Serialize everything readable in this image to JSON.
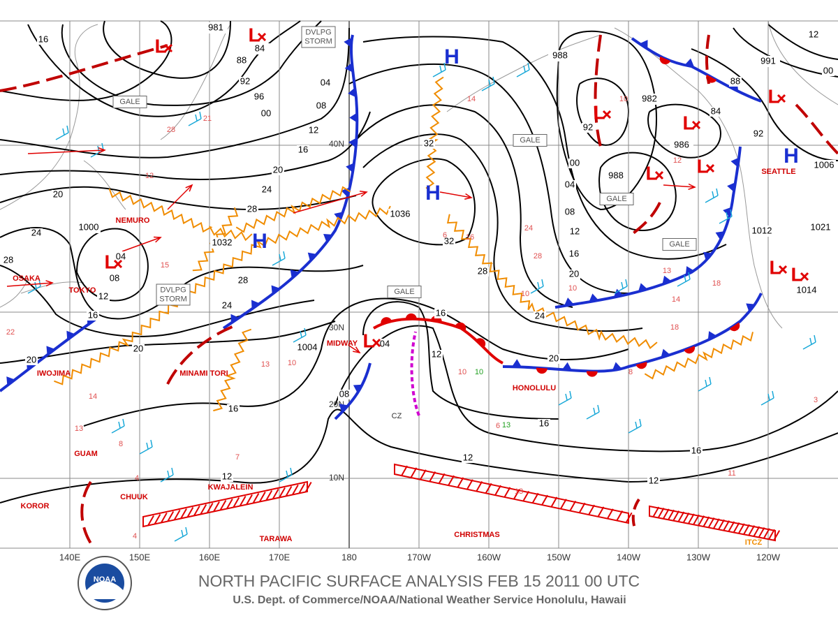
{
  "title": "NORTH PACIFIC SURFACE ANALYSIS FEB 15 2011 00 UTC",
  "subtitle": "U.S. Dept. of Commerce/NOAA/National Weather Service Honolulu, Hawaii",
  "logo_text": "NOAA",
  "longitudes": [
    "140E",
    "150E",
    "160E",
    "170E",
    "180",
    "170W",
    "160W",
    "150W",
    "140W",
    "130W",
    "120W"
  ],
  "latitudes": [
    "40N",
    "30N",
    "20N",
    "10N"
  ],
  "places": [
    "NEMURO",
    "OSAKA",
    "TOKYO",
    "IWOJIMA",
    "MINAMI TORI",
    "MIDWAY",
    "HONOLULU",
    "GUAM",
    "KWAJALEIN",
    "CHUUK",
    "KOROR",
    "TARAWA",
    "CHRISTMAS",
    "SEATTLE"
  ],
  "highs": [
    "H",
    "H",
    "H",
    "H"
  ],
  "lows": [
    "L",
    "L",
    "L",
    "L",
    "L",
    "L",
    "L",
    "L",
    "L",
    "L",
    "L"
  ],
  "pressure_values": [
    "84",
    "04",
    "04",
    "1036",
    "1032",
    "1000",
    "981",
    "988",
    "988",
    "986",
    "991",
    "1006",
    "1012",
    "1021",
    "1014",
    "1004",
    "982"
  ],
  "isobar_labels": [
    "16",
    "88",
    "92",
    "96",
    "00",
    "04",
    "08",
    "12",
    "16",
    "20",
    "24",
    "28",
    "32",
    "32",
    "28",
    "24",
    "20",
    "16",
    "12",
    "08",
    "16",
    "16",
    "12",
    "12",
    "12",
    "16",
    "20",
    "24",
    "28",
    "20",
    "24",
    "28",
    "08",
    "12",
    "16",
    "20",
    "00",
    "04",
    "08",
    "12",
    "16",
    "20",
    "92",
    "88",
    "92",
    "84",
    "12",
    "00"
  ],
  "warnings": [
    {
      "lines": [
        "GALE"
      ]
    },
    {
      "lines": [
        "GALE"
      ]
    },
    {
      "lines": [
        "GALE"
      ]
    },
    {
      "lines": [
        "GALE"
      ]
    },
    {
      "lines": [
        "GALE"
      ]
    },
    {
      "lines": [
        "DVLPG",
        "STORM"
      ]
    },
    {
      "lines": [
        "DVLPG",
        "STORM"
      ]
    }
  ],
  "annotations": [
    "ITCZ",
    "CZ"
  ],
  "wind_reports": [
    "28",
    "21",
    "12",
    "15",
    "22",
    "14",
    "13",
    "8",
    "4",
    "4",
    "7",
    "13",
    "10",
    "10",
    "10",
    "10",
    "6",
    "14",
    "13",
    "16",
    "24",
    "28",
    "10",
    "14",
    "18",
    "6",
    "3",
    "11",
    "18",
    "8",
    "13",
    "13",
    "10",
    "12"
  ]
}
